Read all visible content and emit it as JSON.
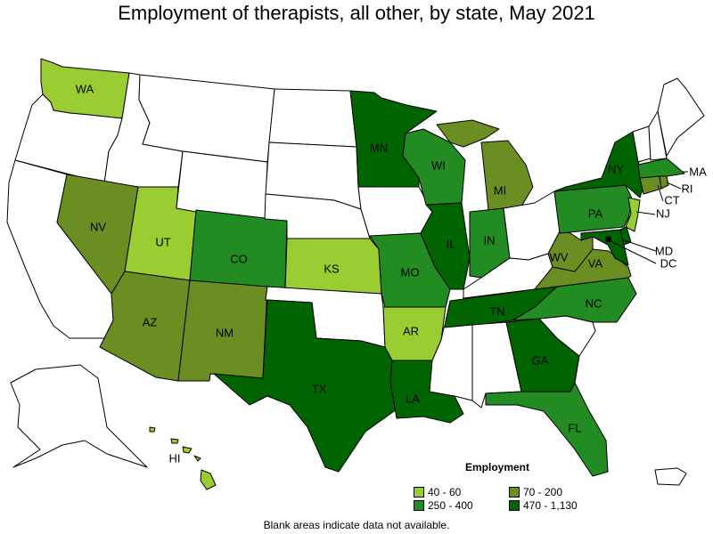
{
  "title": "Employment of therapists, all other, by state, May 2021",
  "note": "Blank areas indicate data not available.",
  "legend": {
    "title": "Employment",
    "items": [
      {
        "label": "40 - 60",
        "color": "#9acd32"
      },
      {
        "label": "70 - 200",
        "color": "#6b8e23"
      },
      {
        "label": "250 - 400",
        "color": "#228b22"
      },
      {
        "label": "470 - 1,130",
        "color": "#006400"
      }
    ]
  },
  "colors": {
    "blank": "#ffffff",
    "c1": "#9acd32",
    "c2": "#6b8e23",
    "c3": "#228b22",
    "c4": "#006400"
  },
  "states": [
    {
      "code": "WA",
      "label": "WA",
      "bin": "c1"
    },
    {
      "code": "OR",
      "label": "",
      "bin": "blank"
    },
    {
      "code": "CA",
      "label": "",
      "bin": "blank"
    },
    {
      "code": "ID",
      "label": "",
      "bin": "blank"
    },
    {
      "code": "NV",
      "label": "NV",
      "bin": "c2"
    },
    {
      "code": "UT",
      "label": "UT",
      "bin": "c1"
    },
    {
      "code": "AZ",
      "label": "AZ",
      "bin": "c2"
    },
    {
      "code": "MT",
      "label": "",
      "bin": "blank"
    },
    {
      "code": "WY",
      "label": "",
      "bin": "blank"
    },
    {
      "code": "CO",
      "label": "CO",
      "bin": "c3"
    },
    {
      "code": "NM",
      "label": "NM",
      "bin": "c2"
    },
    {
      "code": "ND",
      "label": "",
      "bin": "blank"
    },
    {
      "code": "SD",
      "label": "",
      "bin": "blank"
    },
    {
      "code": "NE",
      "label": "",
      "bin": "blank"
    },
    {
      "code": "KS",
      "label": "KS",
      "bin": "c1"
    },
    {
      "code": "OK",
      "label": "",
      "bin": "blank"
    },
    {
      "code": "TX",
      "label": "TX",
      "bin": "c4"
    },
    {
      "code": "MN",
      "label": "MN",
      "bin": "c4"
    },
    {
      "code": "IA",
      "label": "",
      "bin": "blank"
    },
    {
      "code": "MO",
      "label": "MO",
      "bin": "c3"
    },
    {
      "code": "AR",
      "label": "AR",
      "bin": "c1"
    },
    {
      "code": "LA",
      "label": "LA",
      "bin": "c4"
    },
    {
      "code": "WI",
      "label": "WI",
      "bin": "c3"
    },
    {
      "code": "IL",
      "label": "IL",
      "bin": "c4"
    },
    {
      "code": "MI",
      "label": "MI",
      "bin": "c2"
    },
    {
      "code": "IN",
      "label": "IN",
      "bin": "c3"
    },
    {
      "code": "OH",
      "label": "",
      "bin": "blank"
    },
    {
      "code": "KY",
      "label": "",
      "bin": "blank"
    },
    {
      "code": "TN",
      "label": "TN",
      "bin": "c4"
    },
    {
      "code": "MS",
      "label": "",
      "bin": "blank"
    },
    {
      "code": "AL",
      "label": "",
      "bin": "blank"
    },
    {
      "code": "GA",
      "label": "GA",
      "bin": "c4"
    },
    {
      "code": "FL",
      "label": "FL",
      "bin": "c3"
    },
    {
      "code": "SC",
      "label": "",
      "bin": "blank"
    },
    {
      "code": "NC",
      "label": "NC",
      "bin": "c3"
    },
    {
      "code": "VA",
      "label": "VA",
      "bin": "c2"
    },
    {
      "code": "WV",
      "label": "WV",
      "bin": "c2"
    },
    {
      "code": "PA",
      "label": "PA",
      "bin": "c3"
    },
    {
      "code": "NY",
      "label": "NY",
      "bin": "c4"
    },
    {
      "code": "VT",
      "label": "",
      "bin": "blank"
    },
    {
      "code": "NH",
      "label": "",
      "bin": "blank"
    },
    {
      "code": "ME",
      "label": "",
      "bin": "blank"
    },
    {
      "code": "MA",
      "label": "MA",
      "bin": "c3"
    },
    {
      "code": "RI",
      "label": "RI",
      "bin": "c2"
    },
    {
      "code": "CT",
      "label": "CT",
      "bin": "c2"
    },
    {
      "code": "NJ",
      "label": "NJ",
      "bin": "c1"
    },
    {
      "code": "DE",
      "label": "",
      "bin": "c4"
    },
    {
      "code": "MD",
      "label": "MD",
      "bin": "c4"
    },
    {
      "code": "DC",
      "label": "DC",
      "bin": "c4"
    },
    {
      "code": "AK",
      "label": "",
      "bin": "blank"
    },
    {
      "code": "HI",
      "label": "HI",
      "bin": "c1"
    },
    {
      "code": "PR",
      "label": "",
      "bin": "blank"
    }
  ]
}
